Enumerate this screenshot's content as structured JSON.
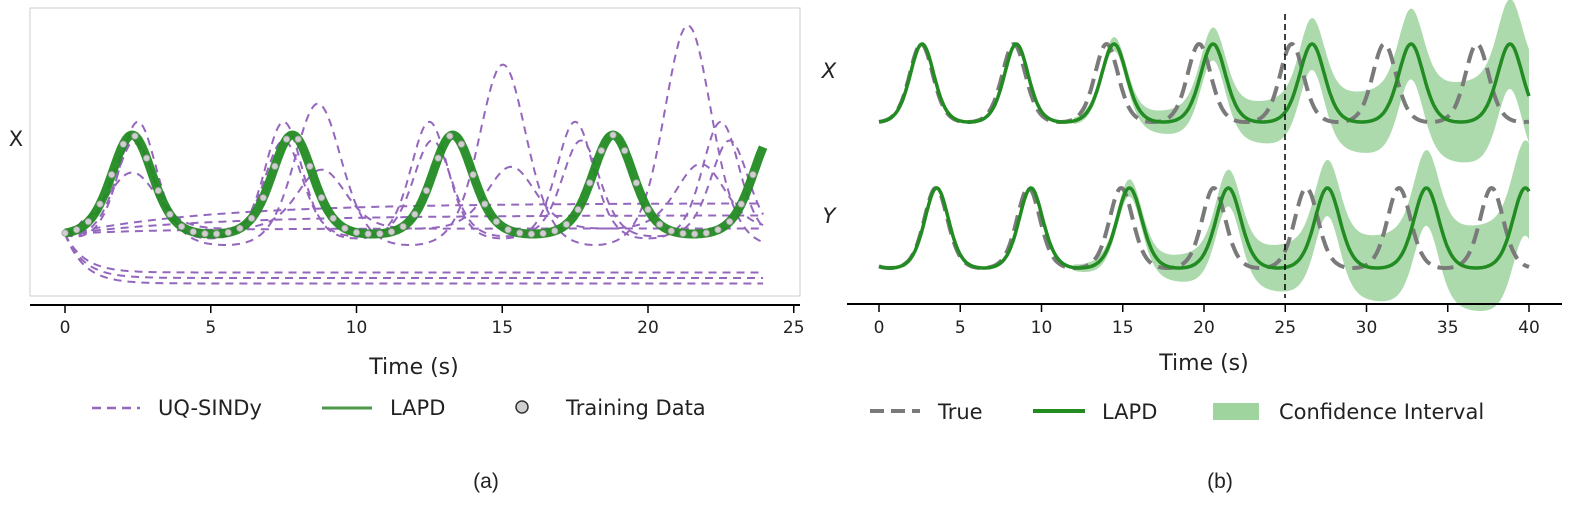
{
  "colors": {
    "uq_sindy": "#9467bd",
    "lapd": "#228b22",
    "lapd_legend": "#4a9a4a",
    "training_fill": "#cfcfcf",
    "training_edge": "#9a9a9a",
    "true": "#7a7a7a",
    "ci": "#9fd49f",
    "axis": "#000000",
    "frame": "#cccccc"
  },
  "chart_data": [
    {
      "panel": "(a)",
      "type": "line",
      "ylabel": "X",
      "xlabel": "Time (s)",
      "xlim": [
        -2,
        25
      ],
      "xticks": [
        0,
        5,
        10,
        15,
        20,
        25
      ],
      "tick_labels": [
        "0",
        "5",
        "10",
        "15",
        "20",
        "25"
      ],
      "grid": false,
      "legend_position": "bottom",
      "legend": [
        "UQ-SINDy",
        "LAPD",
        "Training Data"
      ],
      "lapd": {
        "t_end": 24,
        "period": 5.5,
        "first_peak": 2.3,
        "min": 0.1,
        "max": 1.0
      },
      "training_data": {
        "t_start": 0,
        "t_end": 23.6,
        "step": 0.4
      },
      "uq_sindy_trajectories": [
        {
          "period": 5.0,
          "first_peak": 2.5,
          "min": 0.06,
          "max": 1.12,
          "growth": 0.0,
          "t_end": 24
        },
        {
          "period": 5.1,
          "first_peak": 2.4,
          "min": 0.08,
          "max": 0.95,
          "growth": 0.0,
          "t_end": 24
        },
        {
          "period": 6.35,
          "first_peak": 2.3,
          "min": 0.0,
          "max": 0.8,
          "growth": 0.7,
          "t_end": 24
        },
        {
          "period": 6.5,
          "first_peak": 2.3,
          "min": 0.15,
          "max": 0.65,
          "growth": 0.08,
          "t_end": 24
        },
        {
          "type": "flat",
          "start": 0.1,
          "end": 0.38,
          "rate": 0.2
        },
        {
          "type": "flat",
          "start": 0.1,
          "end": 0.27,
          "rate": 0.2
        },
        {
          "type": "flat",
          "start": 0.1,
          "end": 0.15,
          "rate": 0.3
        },
        {
          "type": "flat",
          "start": 0.1,
          "end": -0.25,
          "rate": 1.5
        },
        {
          "type": "flat",
          "start": 0.1,
          "end": -0.3,
          "rate": 1.5
        },
        {
          "type": "flat",
          "start": 0.1,
          "end": -0.35,
          "rate": 1.5
        }
      ]
    },
    {
      "panel": "(b)",
      "type": "line",
      "xlabel": "Time (s)",
      "xlim": [
        -2,
        42
      ],
      "xticks": [
        0,
        5,
        10,
        15,
        20,
        25,
        30,
        35,
        40
      ],
      "tick_labels": [
        "0",
        "5",
        "10",
        "15",
        "20",
        "25",
        "30",
        "35",
        "40"
      ],
      "vline_x": 25,
      "grid": false,
      "legend_position": "bottom",
      "legend": [
        "True",
        "LAPD",
        "Confidence Interval"
      ],
      "series": [
        {
          "name": "X",
          "period": 5.7,
          "first_peak": 2.6,
          "pred_period": 5.8,
          "min": 0.0,
          "max": 1.0,
          "ci_start": 12,
          "ci_growth": 0.02
        },
        {
          "name": "Y",
          "period": 5.7,
          "first_peak": 3.5,
          "pred_period": 5.8,
          "min": 0.0,
          "max": 1.0,
          "ci_start": 12,
          "ci_growth": 0.02
        }
      ]
    }
  ],
  "legend_a": {
    "uq": "UQ-SINDy",
    "lapd": "LAPD",
    "train": "Training Data"
  },
  "legend_b": {
    "true": "True",
    "lapd": "LAPD",
    "ci": "Confidence Interval"
  },
  "captions": {
    "a": "(a)",
    "b": "(b)"
  }
}
